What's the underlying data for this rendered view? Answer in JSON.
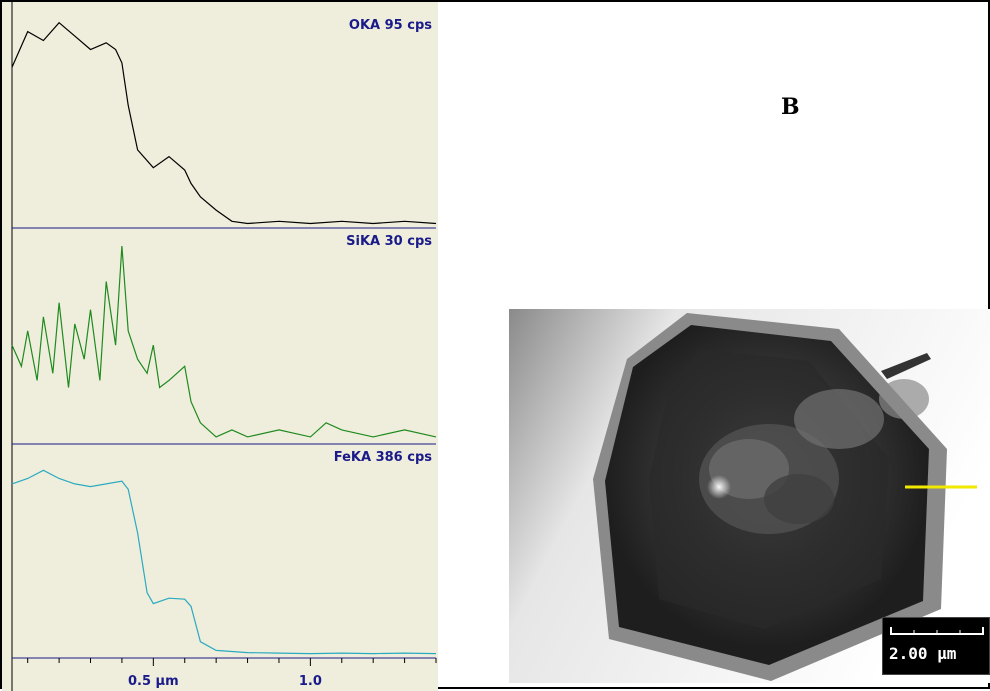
{
  "panel_label": "B",
  "chart_data": {
    "type": "line",
    "xlabel": "",
    "x_unit": "µm",
    "xlim": [
      0.05,
      1.4
    ],
    "x_tick_labels": [
      {
        "value": 0.5,
        "label": "0.5 µm"
      },
      {
        "value": 1.0,
        "label": "1.0"
      }
    ],
    "colors": {
      "background": "#efeedc",
      "baseline": "#1a1a8a",
      "label": "#1a1a8a"
    },
    "series": [
      {
        "name": "OKA 95 cps",
        "color": "#000000",
        "ylim": [
          0,
          95
        ],
        "x": [
          0.05,
          0.1,
          0.15,
          0.2,
          0.25,
          0.3,
          0.35,
          0.38,
          0.4,
          0.42,
          0.45,
          0.5,
          0.55,
          0.6,
          0.62,
          0.65,
          0.7,
          0.75,
          0.8,
          0.9,
          1.0,
          1.1,
          1.2,
          1.3,
          1.4
        ],
        "values": [
          72,
          88,
          84,
          92,
          86,
          80,
          83,
          80,
          74,
          55,
          35,
          27,
          32,
          26,
          20,
          14,
          8,
          3,
          2,
          3,
          2,
          3,
          2,
          3,
          2
        ]
      },
      {
        "name": "SiKA 30 cps",
        "color": "#1f8a1f",
        "ylim": [
          0,
          30
        ],
        "x": [
          0.05,
          0.08,
          0.1,
          0.13,
          0.15,
          0.18,
          0.2,
          0.23,
          0.25,
          0.28,
          0.3,
          0.33,
          0.35,
          0.38,
          0.4,
          0.42,
          0.45,
          0.48,
          0.5,
          0.52,
          0.55,
          0.6,
          0.62,
          0.65,
          0.7,
          0.75,
          0.8,
          0.9,
          1.0,
          1.05,
          1.1,
          1.2,
          1.3,
          1.4
        ],
        "values": [
          14,
          11,
          16,
          9,
          18,
          10,
          20,
          8,
          17,
          12,
          19,
          9,
          23,
          14,
          28,
          16,
          12,
          10,
          14,
          8,
          9,
          11,
          6,
          3,
          1,
          2,
          1,
          2,
          1,
          3,
          2,
          1,
          2,
          1
        ]
      },
      {
        "name": "FeKA 386 cps",
        "color": "#2aaac0",
        "ylim": [
          0,
          386
        ],
        "x": [
          0.05,
          0.1,
          0.15,
          0.2,
          0.25,
          0.3,
          0.35,
          0.4,
          0.42,
          0.45,
          0.48,
          0.5,
          0.55,
          0.6,
          0.62,
          0.65,
          0.7,
          0.8,
          0.9,
          1.0,
          1.1,
          1.2,
          1.3,
          1.4
        ],
        "values": [
          320,
          330,
          345,
          330,
          320,
          315,
          320,
          325,
          310,
          230,
          120,
          100,
          110,
          108,
          95,
          30,
          14,
          10,
          9,
          8,
          9,
          8,
          9,
          8
        ]
      }
    ]
  },
  "scale_bar": {
    "label": "2.00 µm",
    "color": "#ffffff",
    "background": "#000000"
  }
}
